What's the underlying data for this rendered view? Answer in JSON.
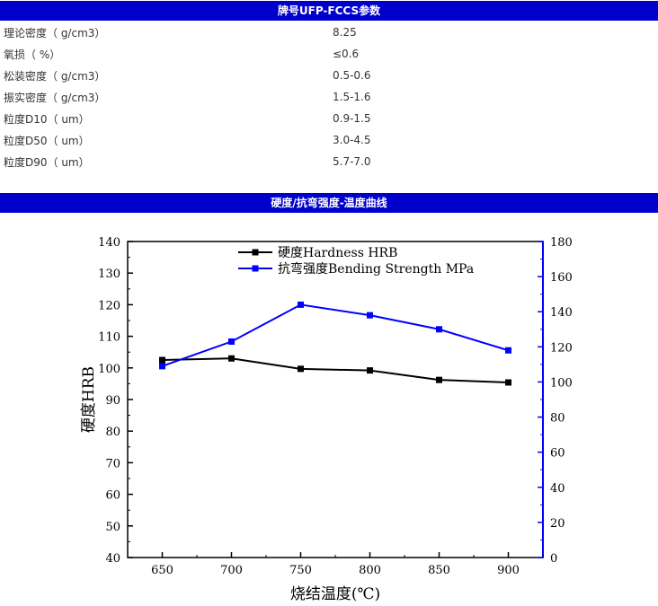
{
  "properties": {
    "title": "牌号UFP-FCCS参数",
    "rows": [
      {
        "name": "理论密度（ g/cm3）",
        "value": "8.25"
      },
      {
        "name": "氧损（ %）",
        "value": "≤0.6"
      },
      {
        "name": "松装密度（ g/cm3）",
        "value": "0.5-0.6"
      },
      {
        "name": "振实密度（ g/cm3）",
        "value": "1.5-1.6"
      },
      {
        "name": "粒度D10（ um）",
        "value": "0.9-1.5"
      },
      {
        "name": "粒度D50（ um）",
        "value": "3.0-4.5"
      },
      {
        "name": "粒度D90（ um）",
        "value": "5.7-7.0"
      }
    ]
  },
  "curve_section": {
    "title": "硬度/抗弯强度-温度曲线"
  },
  "chart_data": {
    "type": "line",
    "title": "",
    "xlabel": "烧结温度(℃)",
    "ylabel": "硬度HRB",
    "y2label": "",
    "x": [
      650,
      700,
      750,
      800,
      850,
      900
    ],
    "xticks": [
      "650",
      "700",
      "750",
      "800",
      "850",
      "900"
    ],
    "ylim": [
      40,
      140
    ],
    "yticks": [
      "40",
      "50",
      "60",
      "70",
      "80",
      "90",
      "100",
      "110",
      "120",
      "130",
      "140"
    ],
    "y2lim": [
      0,
      180
    ],
    "y2ticks": [
      "0",
      "20",
      "40",
      "60",
      "80",
      "100",
      "120",
      "140",
      "160",
      "180"
    ],
    "legend_position": "top-left",
    "series": [
      {
        "name": "硬度Hardness HRB",
        "axis": "left",
        "color": "#000000",
        "values": [
          102.5,
          103.0,
          99.7,
          99.2,
          96.2,
          95.4
        ]
      },
      {
        "name": "抗弯强度Bending Strength MPa",
        "axis": "right",
        "color": "#0000ff",
        "values": [
          109,
          123,
          144,
          138,
          130,
          118
        ]
      }
    ]
  }
}
